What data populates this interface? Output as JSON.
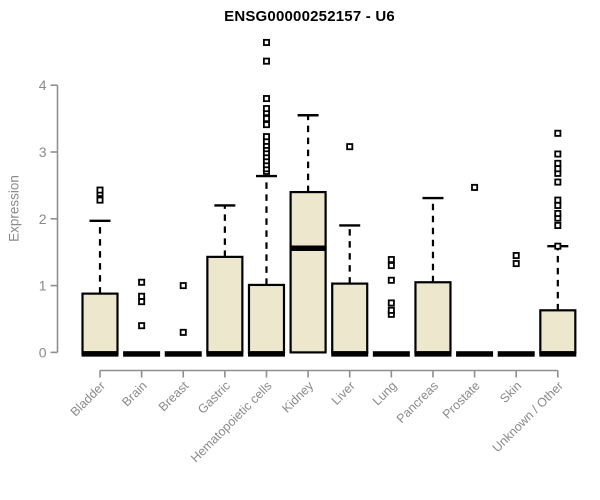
{
  "chart_data": {
    "type": "boxplot",
    "title": "ENSG00000252157 - U6",
    "ylabel": "Expression",
    "xlabel": "",
    "yticks": [
      0,
      1,
      2,
      3,
      4
    ],
    "ylim": [
      0,
      4.7
    ],
    "grid": false,
    "legend": false,
    "categories": [
      "Bladder",
      "Brain",
      "Breast",
      "Gastric",
      "Hematopoietic cells",
      "Kidney",
      "Liver",
      "Lung",
      "Pancreas",
      "Prostate",
      "Skin",
      "Unknown / Other"
    ],
    "series": [
      {
        "category": "Bladder",
        "min": 0,
        "q1": 0,
        "median": 0,
        "q3": 0.88,
        "whisker_high": 1.97,
        "outliers": [
          2.28,
          2.38,
          2.43
        ]
      },
      {
        "category": "Brain",
        "min": 0,
        "q1": 0,
        "median": 0,
        "q3": 0,
        "whisker_high": 0,
        "outliers": [
          0.4,
          0.76,
          0.84,
          1.05
        ]
      },
      {
        "category": "Breast",
        "min": 0,
        "q1": 0,
        "median": 0,
        "q3": 0,
        "whisker_high": 0,
        "outliers": [
          0.3,
          1.0
        ]
      },
      {
        "category": "Gastric",
        "min": 0,
        "q1": 0,
        "median": 0,
        "q3": 1.43,
        "whisker_high": 2.2,
        "outliers": []
      },
      {
        "category": "Hematopoietic cells",
        "min": 0,
        "q1": 0,
        "median": 0,
        "q3": 1.01,
        "whisker_high": 2.64,
        "outliers": [
          2.71,
          2.75,
          2.81,
          2.87,
          2.93,
          2.99,
          3.05,
          3.1,
          3.16,
          3.23,
          3.41,
          3.5,
          3.59,
          3.65,
          3.8,
          4.36,
          4.64
        ]
      },
      {
        "category": "Kidney",
        "min": 0,
        "q1": 0,
        "median": 1.56,
        "q3": 2.4,
        "whisker_high": 3.55,
        "outliers": []
      },
      {
        "category": "Liver",
        "min": 0,
        "q1": 0,
        "median": 0,
        "q3": 1.03,
        "whisker_high": 1.9,
        "outliers": [
          3.08
        ]
      },
      {
        "category": "Lung",
        "min": 0,
        "q1": 0,
        "median": 0,
        "q3": 0,
        "whisker_high": 0,
        "outliers": [
          0.57,
          0.63,
          0.74,
          1.08,
          1.3,
          1.39
        ]
      },
      {
        "category": "Pancreas",
        "min": 0,
        "q1": 0,
        "median": 0,
        "q3": 1.05,
        "whisker_high": 2.31,
        "outliers": []
      },
      {
        "category": "Prostate",
        "min": 0,
        "q1": 0,
        "median": 0,
        "q3": 0,
        "whisker_high": 0,
        "outliers": [
          2.47
        ]
      },
      {
        "category": "Skin",
        "min": 0,
        "q1": 0,
        "median": 0,
        "q3": 0,
        "whisker_high": 0,
        "outliers": [
          1.33,
          1.45
        ]
      },
      {
        "category": "Unknown / Other",
        "min": 0,
        "q1": 0,
        "median": 0,
        "q3": 0.63,
        "whisker_high": 1.59,
        "outliers": [
          1.59,
          1.9,
          2.01,
          2.08,
          2.2,
          2.28,
          2.55,
          2.68,
          2.75,
          2.83,
          2.97,
          3.28
        ]
      }
    ],
    "colors": {
      "box_fill": "#ece7cd",
      "box_border": "#000000",
      "median": "#000000",
      "whisker": "#000000",
      "outlier": "#000000",
      "axis": "#8f8f8f",
      "tick_text": "#8a8a8a",
      "title_text": "#000000",
      "background": "#ffffff"
    }
  }
}
